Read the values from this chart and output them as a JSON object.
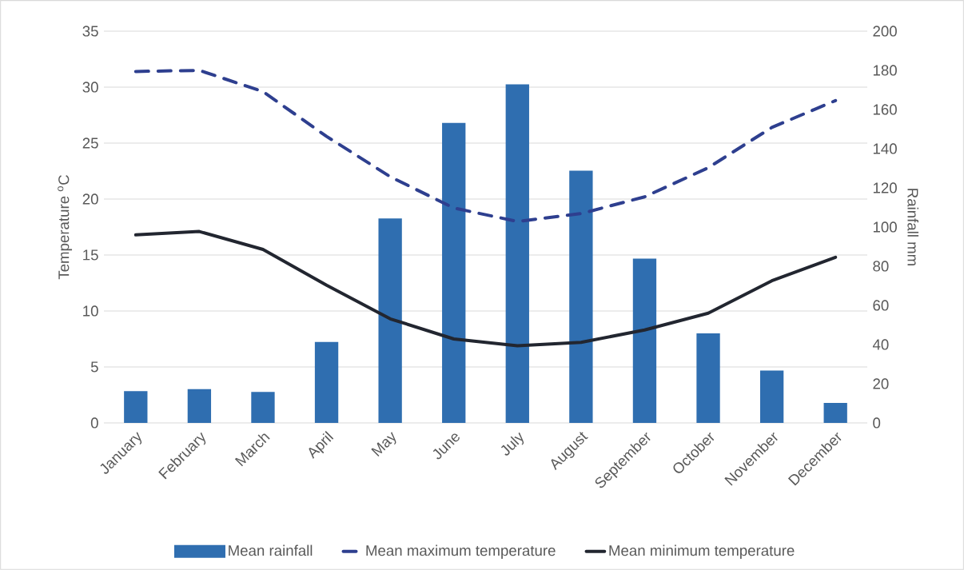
{
  "chart_data": {
    "type": "bar",
    "categories": [
      "January",
      "February",
      "March",
      "April",
      "May",
      "June",
      "July",
      "August",
      "September",
      "October",
      "November",
      "December"
    ],
    "series": [
      {
        "name": "Mean rainfall",
        "axis": "y2",
        "color": "#2f6eb0",
        "values": [
          16.2,
          17.2,
          15.8,
          41.3,
          104.4,
          153.2,
          172.9,
          128.8,
          83.9,
          45.7,
          26.7,
          10.2
        ]
      },
      {
        "name": "Mean maximum temperature",
        "type": "line",
        "line_style": "dashed",
        "color": "#2e3f8f",
        "values": [
          31.4,
          31.5,
          29.6,
          25.6,
          22.0,
          19.2,
          18.0,
          18.7,
          20.2,
          22.8,
          26.4,
          28.8
        ]
      },
      {
        "name": "Mean minimum temperature",
        "type": "line",
        "line_style": "solid",
        "color": "#222630",
        "values": [
          16.8,
          17.1,
          15.5,
          12.3,
          9.3,
          7.5,
          6.9,
          7.2,
          8.3,
          9.8,
          12.7,
          14.8
        ]
      }
    ],
    "ylabel": "Temperature $^{o}$C",
    "y2label": "Rainfall mm",
    "ylim": [
      0,
      35
    ],
    "yticks": [
      0,
      5,
      10,
      15,
      20,
      25,
      30,
      35
    ],
    "y2lim": [
      0,
      200
    ],
    "y2ticks": [
      0,
      20,
      40,
      60,
      80,
      100,
      120,
      140,
      160,
      180,
      200
    ],
    "grid": "y",
    "legend": "bottom"
  }
}
